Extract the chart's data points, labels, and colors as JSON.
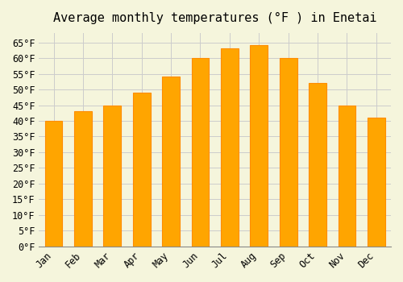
{
  "title": "Average monthly temperatures (°F ) in Enetai",
  "months": [
    "Jan",
    "Feb",
    "Mar",
    "Apr",
    "May",
    "Jun",
    "Jul",
    "Aug",
    "Sep",
    "Oct",
    "Nov",
    "Dec"
  ],
  "values": [
    40,
    43,
    45,
    49,
    54,
    60,
    63,
    64,
    60,
    52,
    45,
    41
  ],
  "bar_color": "#FFA500",
  "bar_edge_color": "#FF8C00",
  "ylim": [
    0,
    68
  ],
  "yticks": [
    0,
    5,
    10,
    15,
    20,
    25,
    30,
    35,
    40,
    45,
    50,
    55,
    60,
    65
  ],
  "background_color": "#F5F5DC",
  "grid_color": "#CCCCCC",
  "title_fontsize": 11,
  "tick_fontsize": 8.5
}
